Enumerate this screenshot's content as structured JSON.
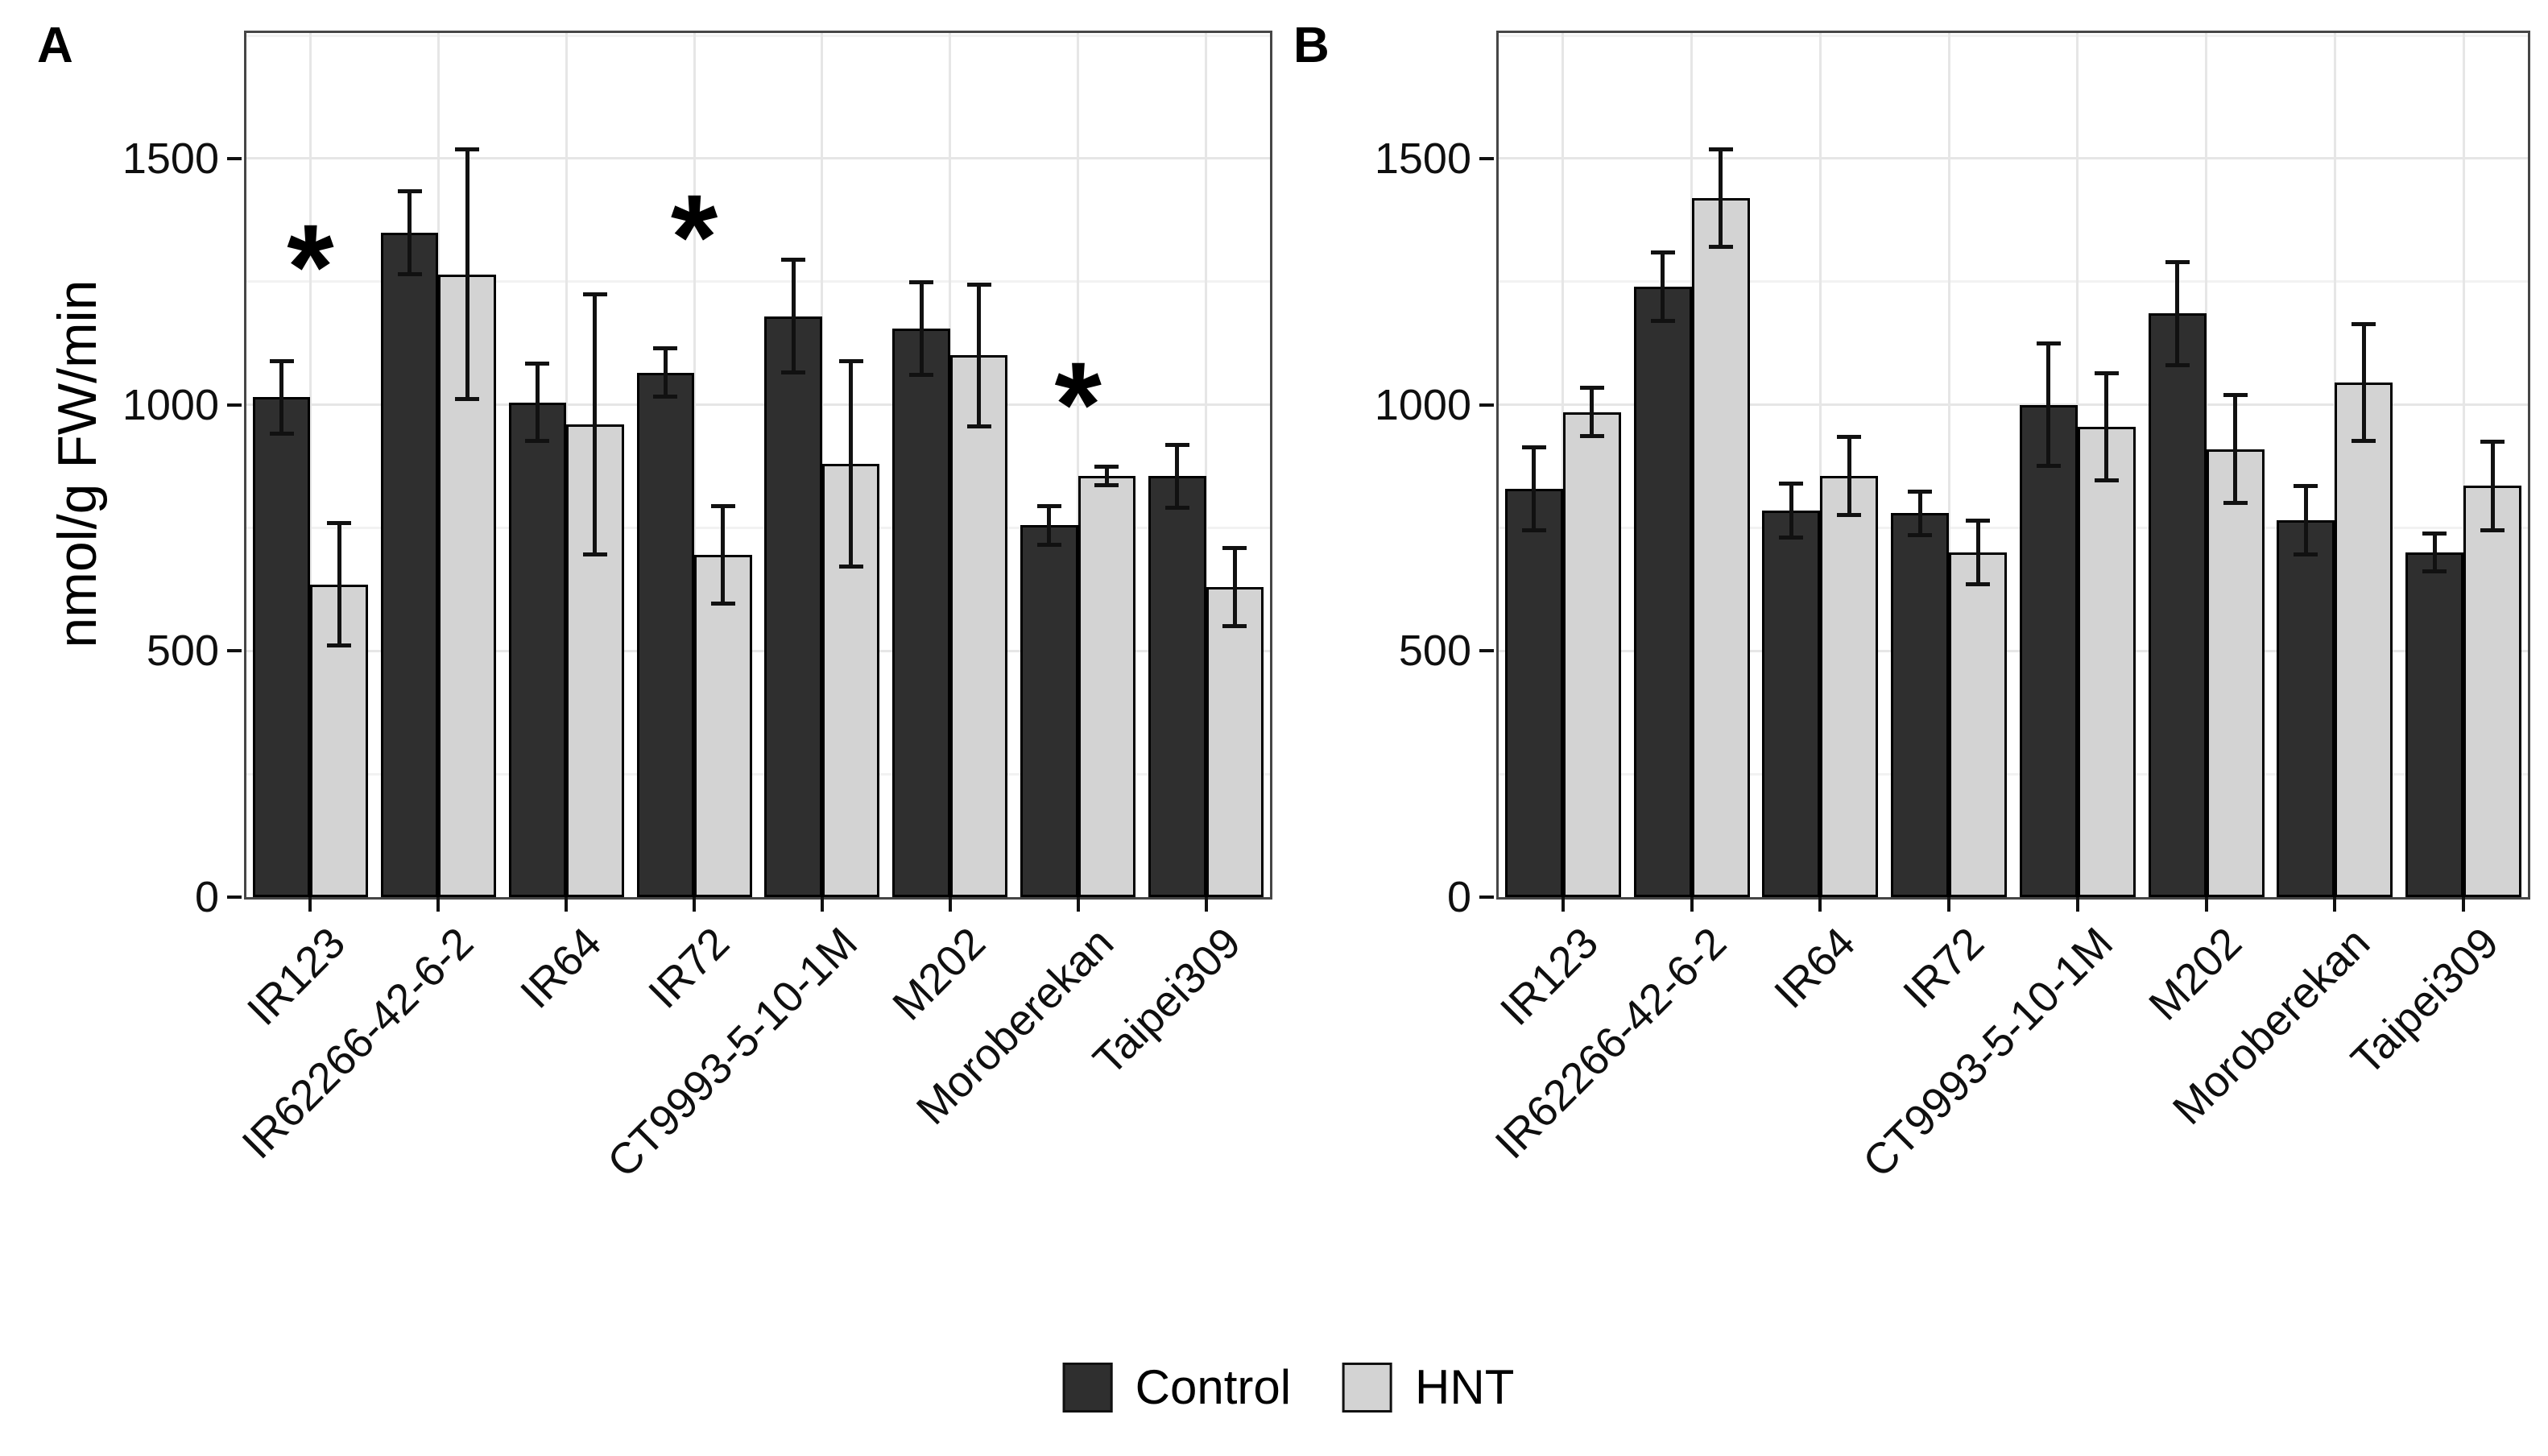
{
  "figure": {
    "panel_letters": [
      "A",
      "B"
    ],
    "significance_marker": "*",
    "colors": {
      "control": "#2f2f2f",
      "hnt": "#d3d3d3",
      "bar_outline": "#000000",
      "error_bar": "#111111",
      "panel_border": "#464646",
      "grid_major": "#e6e6e6",
      "grid_minor": "#f2f2f2",
      "tick": "#111111",
      "text": "#000000",
      "background": "#ffffff"
    },
    "legend": [
      {
        "label": "Control",
        "color_key": "control"
      },
      {
        "label": "HNT",
        "color_key": "hnt"
      }
    ]
  },
  "chart_data": [
    {
      "type": "bar",
      "panel": "A",
      "title": "",
      "xlabel": "",
      "ylabel": "nmol/g FW/min",
      "ylim": [
        0,
        1755
      ],
      "yticks": [
        0,
        500,
        1000,
        1500
      ],
      "yticks_minor": [
        250,
        750,
        1250,
        1750
      ],
      "grid": "major+minor",
      "legend_position": "bottom",
      "categories": [
        "IR123",
        "IR62266-42-6-2",
        "IR64",
        "IR72",
        "CT9993-5-10-1M",
        "M202",
        "Moroberekan",
        "Taipei309"
      ],
      "series": [
        {
          "name": "Control",
          "values": [
            1015,
            1350,
            1005,
            1065,
            1180,
            1155,
            755,
            855
          ],
          "errors": [
            75,
            85,
            80,
            50,
            115,
            95,
            40,
            65
          ]
        },
        {
          "name": "HNT",
          "values": [
            635,
            1265,
            960,
            695,
            880,
            1100,
            855,
            630
          ],
          "errors": [
            125,
            255,
            265,
            100,
            210,
            145,
            20,
            80
          ]
        }
      ],
      "significance": [
        {
          "category": "IR123",
          "y": 1315
        },
        {
          "category": "IR72",
          "y": 1375
        },
        {
          "category": "Moroberekan",
          "y": 1035
        }
      ]
    },
    {
      "type": "bar",
      "panel": "B",
      "title": "",
      "xlabel": "",
      "ylabel": "",
      "ylim": [
        0,
        1755
      ],
      "yticks": [
        0,
        500,
        1000,
        1500
      ],
      "yticks_minor": [
        250,
        750,
        1250,
        1750
      ],
      "grid": "major+minor",
      "legend_position": "bottom",
      "categories": [
        "IR123",
        "IR62266-42-6-2",
        "IR64",
        "IR72",
        "CT9993-5-10-1M",
        "M202",
        "Moroberekan",
        "Taipei309"
      ],
      "series": [
        {
          "name": "Control",
          "values": [
            830,
            1240,
            785,
            780,
            1000,
            1185,
            765,
            700
          ],
          "errors": [
            85,
            70,
            55,
            45,
            125,
            105,
            70,
            40
          ]
        },
        {
          "name": "HNT",
          "values": [
            985,
            1420,
            855,
            700,
            955,
            910,
            1045,
            835
          ],
          "errors": [
            50,
            100,
            80,
            65,
            110,
            110,
            120,
            90
          ]
        }
      ],
      "significance": []
    }
  ]
}
